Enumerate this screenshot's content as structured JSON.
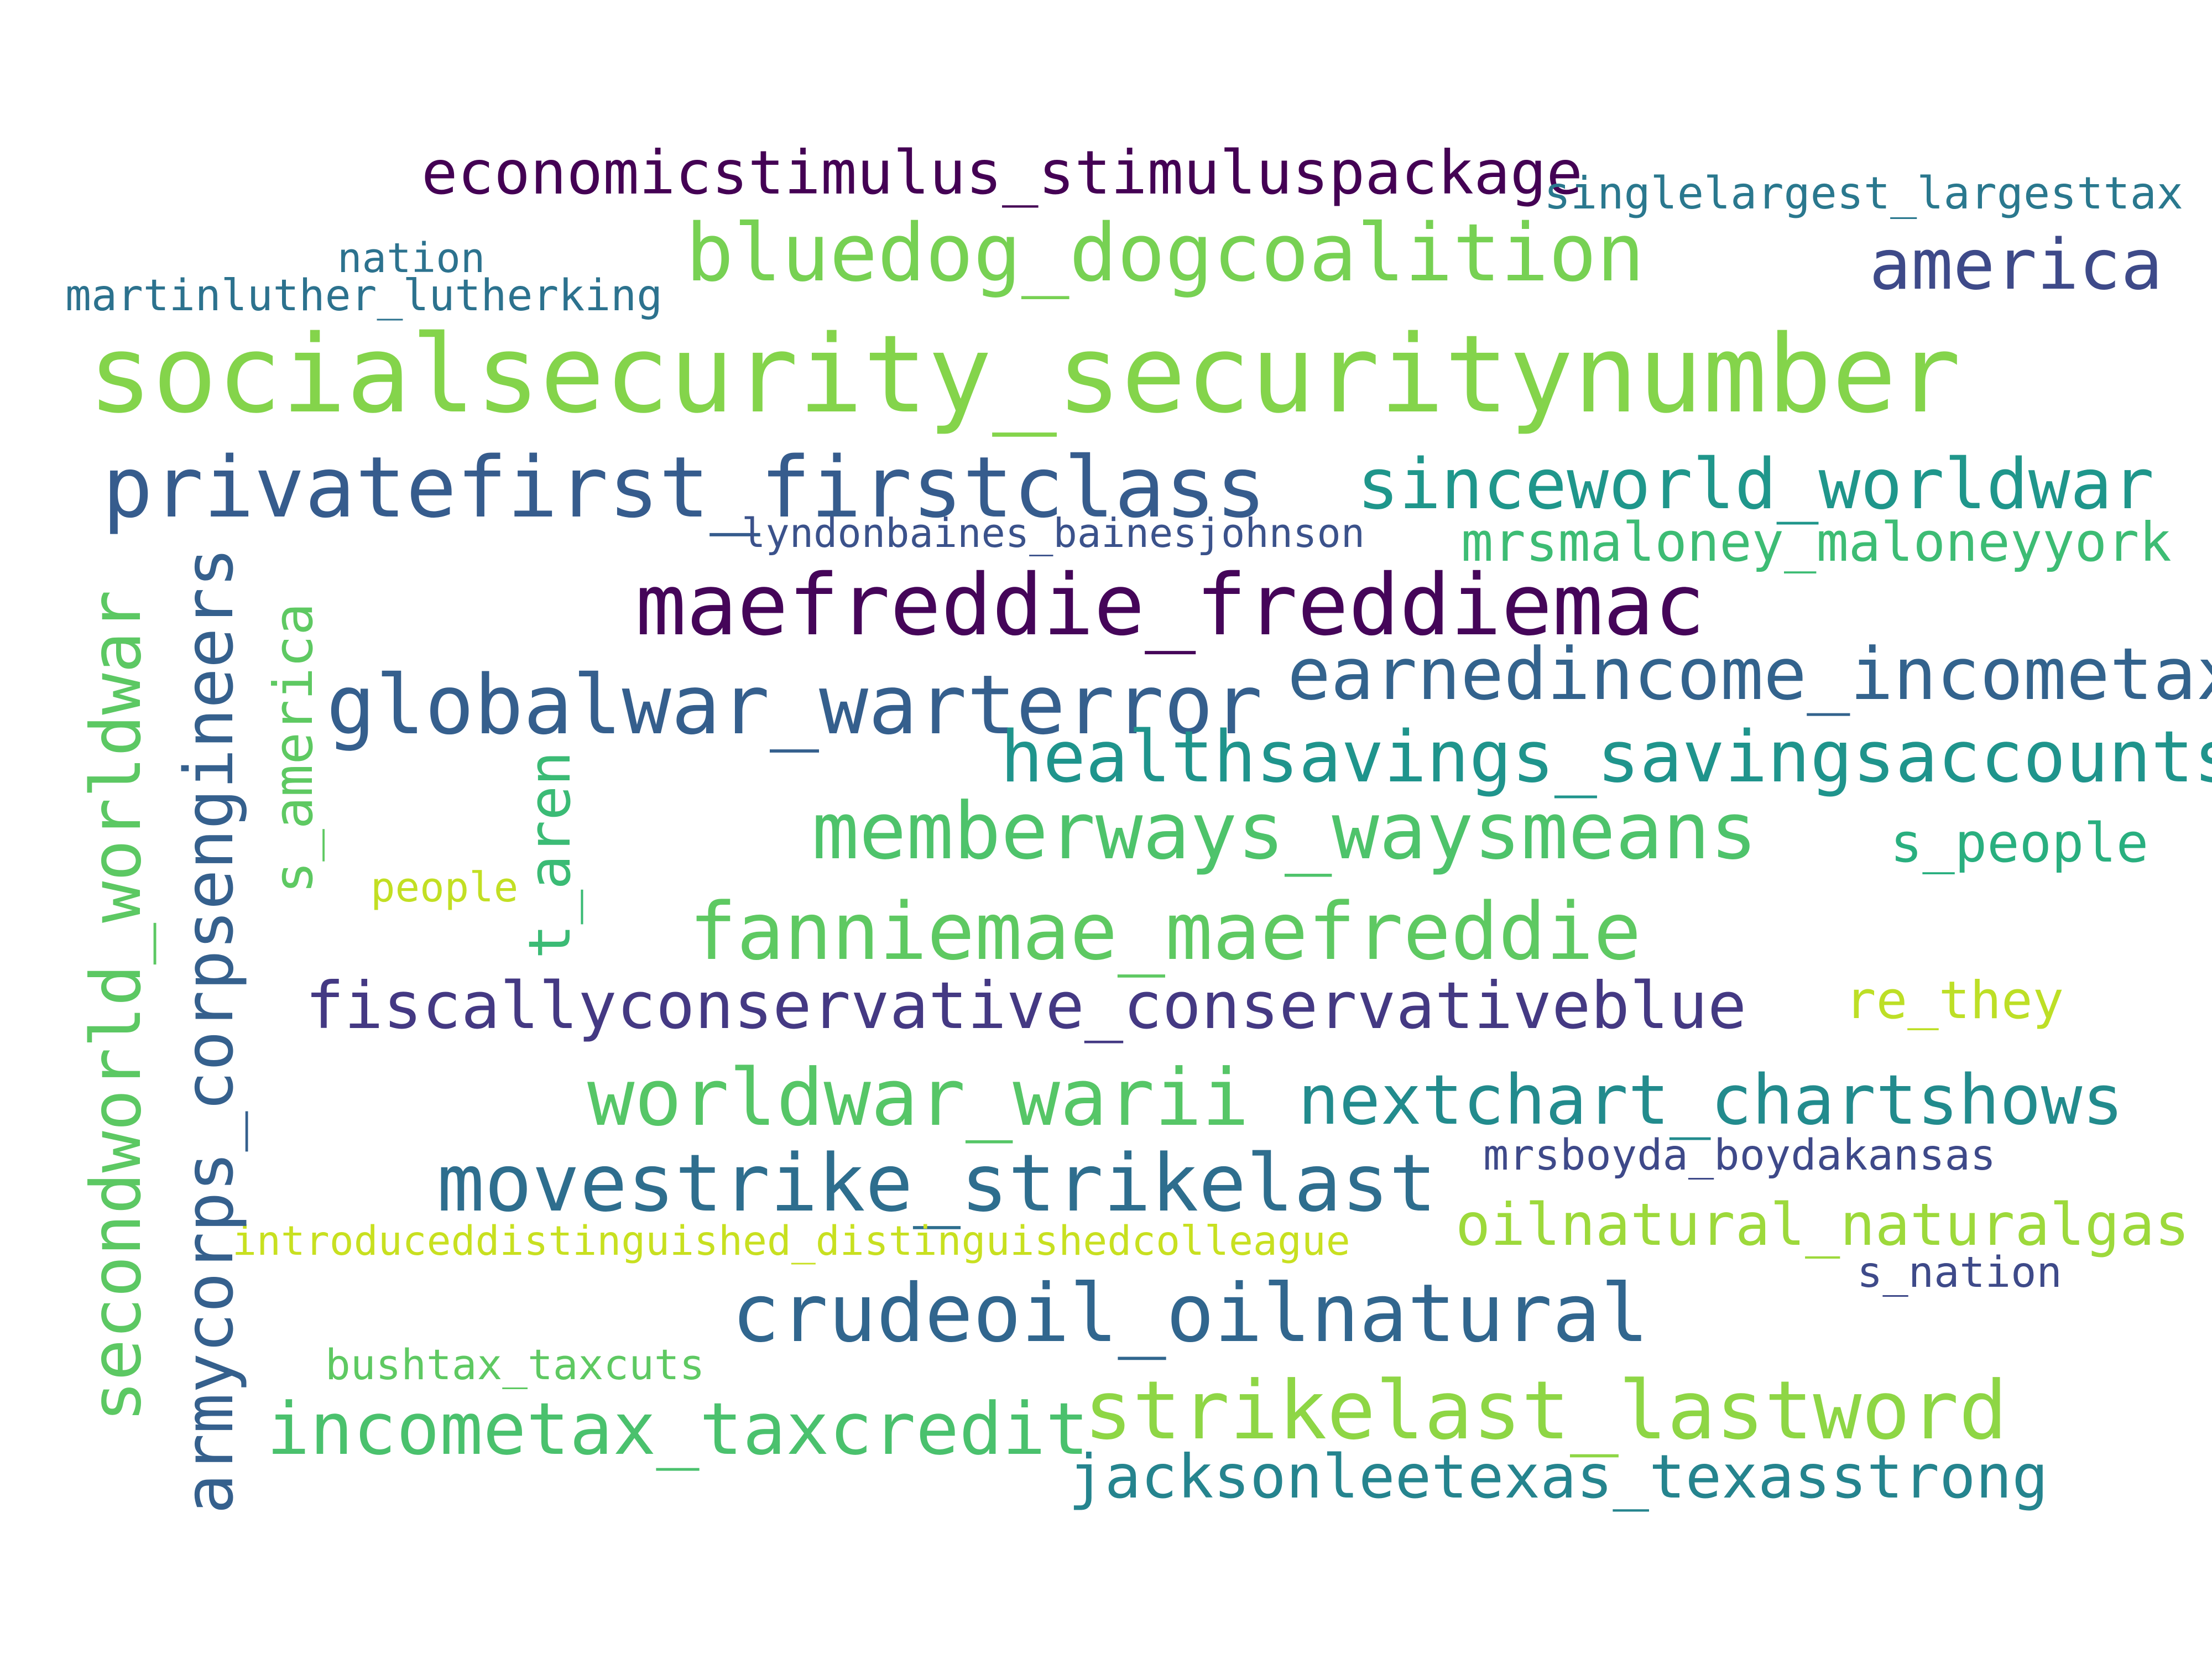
{
  "words": [
    {
      "text": "socialsecurity_securitynumber",
      "color": "#84d44b"
    },
    {
      "text": "bluedog_dogcoalition",
      "color": "#77d153"
    },
    {
      "text": "economicstimulus_stimuluspackage",
      "color": "#440154"
    },
    {
      "text": "singlelargest_largesttax",
      "color": "#2a788e"
    },
    {
      "text": "america",
      "color": "#3e4a89"
    },
    {
      "text": "nation",
      "color": "#2c728e"
    },
    {
      "text": "martinluther_lutherking",
      "color": "#2c728e"
    },
    {
      "text": "privatefirst_firstclass",
      "color": "#365c8d"
    },
    {
      "text": "sinceworld_worldwar",
      "color": "#1f968b"
    },
    {
      "text": "lyndonbaines_bainesjohnson",
      "color": "#3b528b"
    },
    {
      "text": "mrsmaloney_maloneyyork",
      "color": "#3dbc74"
    },
    {
      "text": "maefreddie_freddiemac",
      "color": "#450559"
    },
    {
      "text": "earnedincome_incometax",
      "color": "#33638d"
    },
    {
      "text": "globalwar_warterror",
      "color": "#355f8d"
    },
    {
      "text": "healthsavings_savingsaccounts",
      "color": "#1f948c"
    },
    {
      "text": "memberways_waysmeans",
      "color": "#4ec36b"
    },
    {
      "text": "s_people",
      "color": "#29af7f"
    },
    {
      "text": "people",
      "color": "#c2df23"
    },
    {
      "text": "fanniemae_maefreddie",
      "color": "#5ec962"
    },
    {
      "text": "fiscallyconservative_conservativeblue",
      "color": "#443983"
    },
    {
      "text": "re_they",
      "color": "#bddf26"
    },
    {
      "text": "worldwar_warii",
      "color": "#56c667"
    },
    {
      "text": "nextchart_chartshows",
      "color": "#228b8d"
    },
    {
      "text": "mrsboyda_boydakansas",
      "color": "#3e4989"
    },
    {
      "text": "movestrike_strikelast",
      "color": "#2e6e8e"
    },
    {
      "text": "introduceddistinguished_distinguishedcolleague",
      "color": "#c8e020"
    },
    {
      "text": "oilnatural_naturalgas",
      "color": "#9dd93b"
    },
    {
      "text": "s_nation",
      "color": "#3e4a89"
    },
    {
      "text": "crudeoil_oilnatural",
      "color": "#31668e"
    },
    {
      "text": "bushtax_taxcuts",
      "color": "#5ec962"
    },
    {
      "text": "incometax_taxcredit",
      "color": "#4ac16d"
    },
    {
      "text": "strikelast_lastword",
      "color": "#8ed645"
    },
    {
      "text": "jacksonleetexas_texasstrong",
      "color": "#25848e"
    },
    {
      "text": "secondworld_worldwar",
      "color": "#5cc863"
    },
    {
      "text": "armycorps_corpsengineers",
      "color": "#35608d"
    },
    {
      "text": "s_america",
      "color": "#5ec962"
    },
    {
      "text": "t_aren",
      "color": "#3bbb75"
    }
  ]
}
